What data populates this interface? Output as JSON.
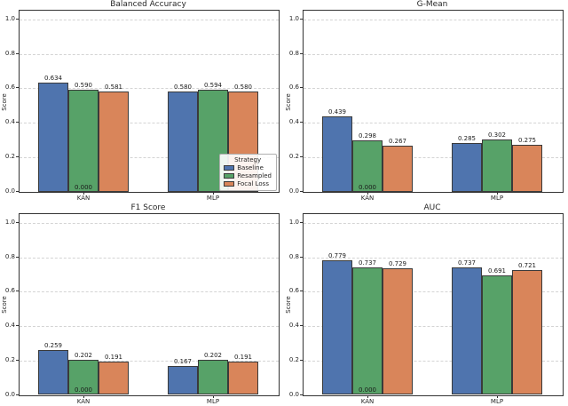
{
  "figure": {
    "background": "#ffffff",
    "axis_color": "#333333",
    "grid_color": "#d4d4d4",
    "text_color": "#262626",
    "bar_edge_color": "#3a3a3a"
  },
  "legend": {
    "title": "Strategy",
    "entries": [
      {
        "label": "Baseline",
        "color": "#4f74ae"
      },
      {
        "label": "Resampled",
        "color": "#57a268"
      },
      {
        "label": "Focal Loss",
        "color": "#d9855a"
      }
    ]
  },
  "chart_data": [
    {
      "type": "bar",
      "title": "Balanced Accuracy",
      "ylabel": "Score",
      "categories": [
        "KAN",
        "MLP"
      ],
      "yticks": [
        "0.0",
        "0.2",
        "0.4",
        "0.6",
        "0.8",
        "1.0"
      ],
      "ylim": [
        0,
        1.05
      ],
      "grid": "horizontal-dashed",
      "has_legend": true,
      "legend_position": "lower right",
      "series": [
        {
          "name": "Baseline",
          "color": "#4f74ae",
          "values": [
            0.634,
            0.58
          ],
          "labels": [
            "0.634",
            "0.580"
          ]
        },
        {
          "name": "Resampled",
          "color": "#57a268",
          "values": [
            0.59,
            0.594
          ],
          "labels": [
            "0.590",
            "0.594"
          ]
        },
        {
          "name": "Focal Loss",
          "color": "#d9855a",
          "values": [
            0.581,
            0.58
          ],
          "labels": [
            "0.581",
            "0.580"
          ]
        }
      ],
      "zero_annotation": {
        "category": "KAN",
        "label": "0.000"
      }
    },
    {
      "type": "bar",
      "title": "G-Mean",
      "ylabel": "Score",
      "categories": [
        "KAN",
        "MLP"
      ],
      "yticks": [
        "0.0",
        "0.2",
        "0.4",
        "0.6",
        "0.8",
        "1.0"
      ],
      "ylim": [
        0,
        1.05
      ],
      "grid": "horizontal-dashed",
      "has_legend": false,
      "series": [
        {
          "name": "Baseline",
          "color": "#4f74ae",
          "values": [
            0.439,
            0.285
          ],
          "labels": [
            "0.439",
            "0.285"
          ]
        },
        {
          "name": "Resampled",
          "color": "#57a268",
          "values": [
            0.298,
            0.302
          ],
          "labels": [
            "0.298",
            "0.302"
          ]
        },
        {
          "name": "Focal Loss",
          "color": "#d9855a",
          "values": [
            0.267,
            0.275
          ],
          "labels": [
            "0.267",
            "0.275"
          ]
        }
      ],
      "zero_annotation": {
        "category": "KAN",
        "label": "0.000"
      }
    },
    {
      "type": "bar",
      "title": "F1 Score",
      "ylabel": "Score",
      "categories": [
        "KAN",
        "MLP"
      ],
      "yticks": [
        "0.0",
        "0.2",
        "0.4",
        "0.6",
        "0.8",
        "1.0"
      ],
      "ylim": [
        0,
        1.05
      ],
      "grid": "horizontal-dashed",
      "has_legend": false,
      "series": [
        {
          "name": "Baseline",
          "color": "#4f74ae",
          "values": [
            0.259,
            0.167
          ],
          "labels": [
            "0.259",
            "0.167"
          ]
        },
        {
          "name": "Resampled",
          "color": "#57a268",
          "values": [
            0.202,
            0.202
          ],
          "labels": [
            "0.202",
            "0.202"
          ]
        },
        {
          "name": "Focal Loss",
          "color": "#d9855a",
          "values": [
            0.191,
            0.191
          ],
          "labels": [
            "0.191",
            "0.191"
          ]
        }
      ],
      "zero_annotation": {
        "category": "KAN",
        "label": "0.000"
      }
    },
    {
      "type": "bar",
      "title": "AUC",
      "ylabel": "Score",
      "categories": [
        "KAN",
        "MLP"
      ],
      "yticks": [
        "0.0",
        "0.2",
        "0.4",
        "0.6",
        "0.8",
        "1.0"
      ],
      "ylim": [
        0,
        1.05
      ],
      "grid": "horizontal-dashed",
      "has_legend": false,
      "series": [
        {
          "name": "Baseline",
          "color": "#4f74ae",
          "values": [
            0.779,
            0.737
          ],
          "labels": [
            "0.779",
            "0.737"
          ]
        },
        {
          "name": "Resampled",
          "color": "#57a268",
          "values": [
            0.737,
            0.691
          ],
          "labels": [
            "0.737",
            "0.691"
          ]
        },
        {
          "name": "Focal Loss",
          "color": "#d9855a",
          "values": [
            0.729,
            0.721
          ],
          "labels": [
            "0.729",
            "0.721"
          ]
        }
      ],
      "zero_annotation": {
        "category": "KAN",
        "label": "0.000"
      }
    }
  ]
}
